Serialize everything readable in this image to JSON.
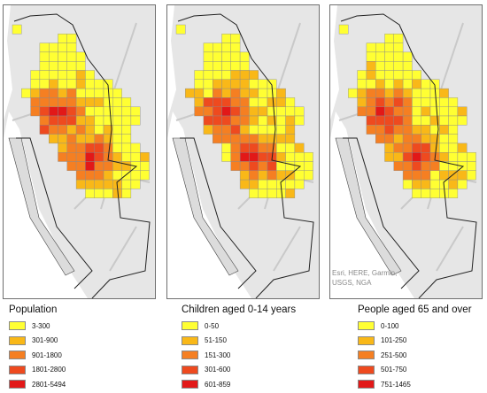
{
  "maps": [
    {
      "id": "population",
      "legend_title": "Population",
      "classes": [
        {
          "label": "3-300",
          "color": "#ffff33"
        },
        {
          "label": "301-900",
          "color": "#f9b818"
        },
        {
          "label": "901-1800",
          "color": "#f57f22"
        },
        {
          "label": "1801-2800",
          "color": "#ee4a1f"
        },
        {
          "label": "2801-5494",
          "color": "#e21818"
        }
      ]
    },
    {
      "id": "children",
      "legend_title": "Children aged 0-14 years",
      "classes": [
        {
          "label": "0-50",
          "color": "#ffff33"
        },
        {
          "label": "51-150",
          "color": "#f9b818"
        },
        {
          "label": "151-300",
          "color": "#f57f22"
        },
        {
          "label": "301-600",
          "color": "#ee4a1f"
        },
        {
          "label": "601-859",
          "color": "#e21818"
        }
      ]
    },
    {
      "id": "elderly",
      "legend_title": "People aged 65 and over",
      "classes": [
        {
          "label": "0-100",
          "color": "#ffff33"
        },
        {
          "label": "101-250",
          "color": "#f9b818"
        },
        {
          "label": "251-500",
          "color": "#f57f22"
        },
        {
          "label": "501-750",
          "color": "#ee4a1f"
        },
        {
          "label": "751-1465",
          "color": "#e21818"
        }
      ]
    }
  ],
  "attribution": [
    "Esri, HERE, Garmin,",
    "USGS, NGA"
  ],
  "colors": {
    "land": "#e6e6e6",
    "water": "#ffffff",
    "boundary": "#222222",
    "grid_edge": "#8a8a8a"
  }
}
